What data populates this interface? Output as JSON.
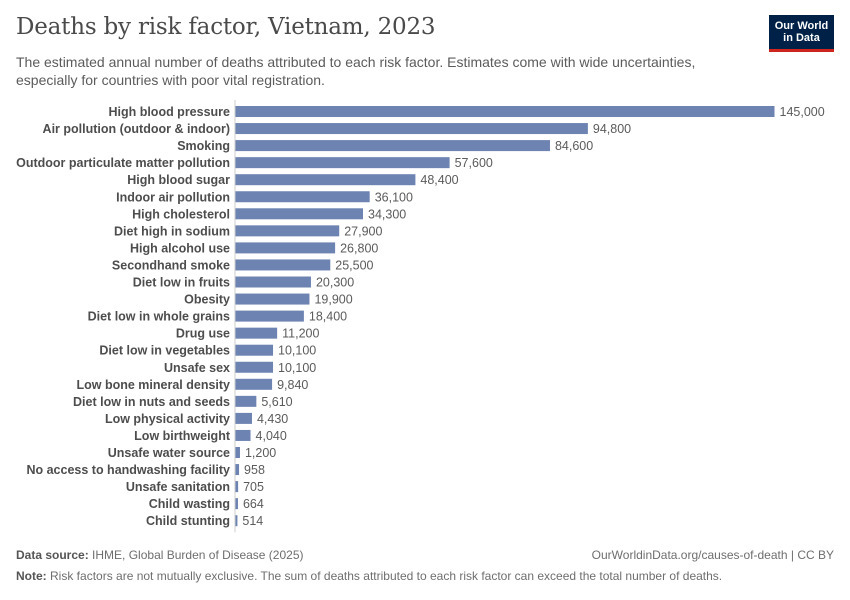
{
  "header": {
    "title": "Deaths by risk factor, Vietnam, 2023",
    "subtitle": "The estimated annual number of deaths attributed to each risk factor. Estimates come with wide uncertainties, especially for countries with poor vital registration."
  },
  "logo": {
    "line1": "Our World",
    "line2": "in Data"
  },
  "footer": {
    "source_label": "Data source:",
    "source_text": "IHME, Global Burden of Disease (2025)",
    "url": "OurWorldinData.org/causes-of-death | CC BY",
    "note_label": "Note:",
    "note_text": "Risk factors are not mutually exclusive. The sum of deaths attributed to each risk factor can exceed the total number of deaths."
  },
  "colors": {
    "bar": "#6d83b2",
    "axis": "#cccccc"
  },
  "chart_data": {
    "type": "bar",
    "orientation": "horizontal",
    "title": "Deaths by risk factor, Vietnam, 2023",
    "xlim": [
      0,
      145000
    ],
    "categories": [
      "High blood pressure",
      "Air pollution (outdoor & indoor)",
      "Smoking",
      "Outdoor particulate matter pollution",
      "High blood sugar",
      "Indoor air pollution",
      "High cholesterol",
      "Diet high in sodium",
      "High alcohol use",
      "Secondhand smoke",
      "Diet low in fruits",
      "Obesity",
      "Diet low in whole grains",
      "Drug use",
      "Diet low in vegetables",
      "Unsafe sex",
      "Low bone mineral density",
      "Diet low in nuts and seeds",
      "Low physical activity",
      "Low birthweight",
      "Unsafe water source",
      "No access to handwashing facility",
      "Unsafe sanitation",
      "Child wasting",
      "Child stunting"
    ],
    "values": [
      145000,
      94800,
      84600,
      57600,
      48400,
      36100,
      34300,
      27900,
      26800,
      25500,
      20300,
      19900,
      18400,
      11200,
      10100,
      10100,
      9840,
      5610,
      4430,
      4040,
      1200,
      958,
      705,
      664,
      514
    ],
    "value_labels": [
      "145,000",
      "94,800",
      "84,600",
      "57,600",
      "48,400",
      "36,100",
      "34,300",
      "27,900",
      "26,800",
      "25,500",
      "20,300",
      "19,900",
      "18,400",
      "11,200",
      "10,100",
      "10,100",
      "9,840",
      "5,610",
      "4,430",
      "4,040",
      "1,200",
      "958",
      "705",
      "664",
      "514"
    ]
  }
}
